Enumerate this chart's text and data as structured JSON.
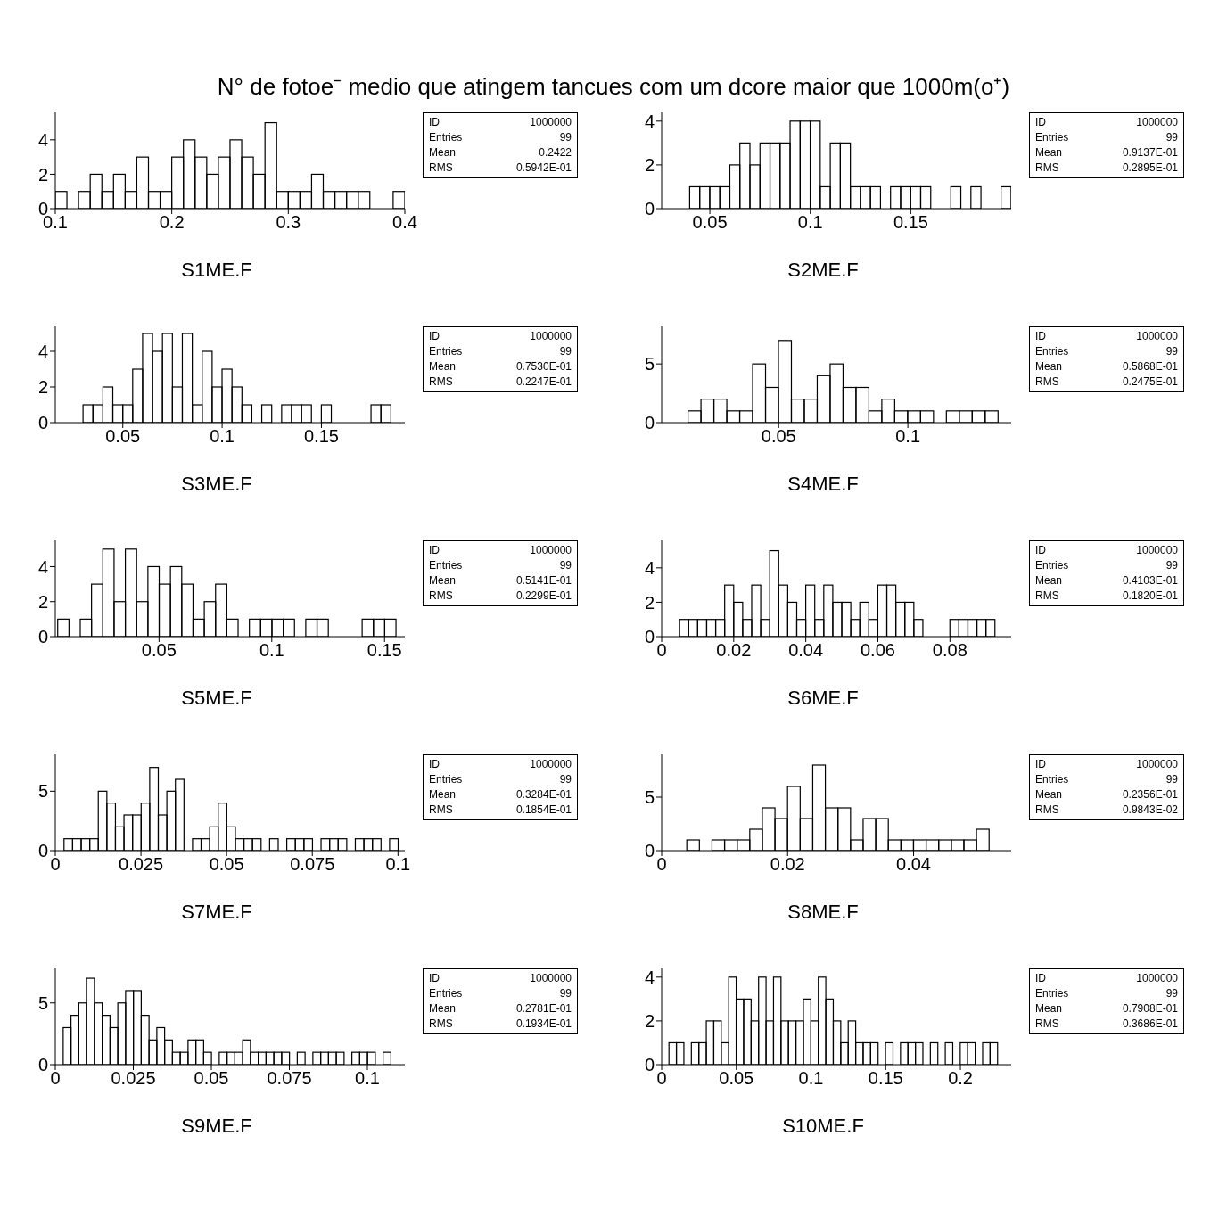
{
  "chart_data": [
    {
      "type": "histogram",
      "title": "N° de fotoe⁻ medio que atingem tancues com um dcore maior que 1000m(o⁺)",
      "xlabel": "S1ME.F",
      "color": "#000000",
      "xlim": [
        0.1,
        0.4
      ],
      "xticks": [
        0.1,
        0.2,
        0.3,
        0.4
      ],
      "ylim": [
        0,
        5.6
      ],
      "yticks": [
        0,
        2,
        4
      ],
      "bins": [
        0.1,
        0.11,
        0.12,
        0.13,
        0.14,
        0.15,
        0.16,
        0.17,
        0.18,
        0.19,
        0.2,
        0.21,
        0.22,
        0.23,
        0.24,
        0.25,
        0.26,
        0.27,
        0.28,
        0.29,
        0.3,
        0.31,
        0.32,
        0.33,
        0.34,
        0.35,
        0.36,
        0.37,
        0.38,
        0.39,
        0.4
      ],
      "values": [
        1,
        0,
        1,
        2,
        1,
        2,
        1,
        3,
        1,
        1,
        3,
        4,
        3,
        2,
        3,
        4,
        3,
        2,
        5,
        1,
        1,
        1,
        2,
        1,
        1,
        1,
        1,
        0,
        0,
        1
      ],
      "annotations": [
        "ID",
        "1000000",
        "Entries",
        "99",
        "Mean",
        "0.2422",
        "RMS",
        "0.5942E-01"
      ]
    },
    {
      "type": "histogram",
      "xlabel": "S2ME.F",
      "color": "#000000",
      "xlim": [
        0.026,
        0.2
      ],
      "xticks": [
        0.05,
        0.1,
        0.15
      ],
      "ylim": [
        0,
        4.4
      ],
      "yticks": [
        0,
        2,
        4
      ],
      "bins": [
        0.03,
        0.035,
        0.04,
        0.045,
        0.05,
        0.055,
        0.06,
        0.065,
        0.07,
        0.075,
        0.08,
        0.085,
        0.09,
        0.095,
        0.1,
        0.105,
        0.11,
        0.115,
        0.12,
        0.125,
        0.13,
        0.135,
        0.14,
        0.145,
        0.15,
        0.155,
        0.16,
        0.165,
        0.17,
        0.175,
        0.18,
        0.185,
        0.19,
        0.195,
        0.2
      ],
      "values": [
        0,
        0,
        1,
        1,
        1,
        1,
        2,
        3,
        2,
        3,
        3,
        3,
        4,
        4,
        4,
        1,
        3,
        3,
        1,
        1,
        1,
        0,
        1,
        1,
        1,
        1,
        0,
        0,
        1,
        0,
        1,
        0,
        0,
        1
      ],
      "annotations": [
        "ID",
        "1000000",
        "Entries",
        "99",
        "Mean",
        "0.9137E-01",
        "RMS",
        "0.2895E-01"
      ]
    },
    {
      "type": "histogram",
      "xlabel": "S3ME.F",
      "color": "#000000",
      "xlim": [
        0.016,
        0.192
      ],
      "xticks": [
        0.05,
        0.1,
        0.15
      ],
      "ylim": [
        0,
        5.4
      ],
      "yticks": [
        0,
        2,
        4
      ],
      "bins": [
        0.02,
        0.025,
        0.03,
        0.035,
        0.04,
        0.045,
        0.05,
        0.055,
        0.06,
        0.065,
        0.07,
        0.075,
        0.08,
        0.085,
        0.09,
        0.095,
        0.1,
        0.105,
        0.11,
        0.115,
        0.12,
        0.125,
        0.13,
        0.135,
        0.14,
        0.145,
        0.15,
        0.155,
        0.16,
        0.165,
        0.17,
        0.175,
        0.18,
        0.185,
        0.19
      ],
      "values": [
        0,
        0,
        1,
        1,
        2,
        1,
        1,
        3,
        5,
        4,
        5,
        2,
        5,
        1,
        4,
        2,
        3,
        2,
        1,
        0,
        1,
        0,
        1,
        1,
        1,
        0,
        1,
        0,
        0,
        0,
        0,
        1,
        1,
        0
      ],
      "annotations": [
        "ID",
        "1000000",
        "Entries",
        "99",
        "Mean",
        "0.7530E-01",
        "RMS",
        "0.2247E-01"
      ]
    },
    {
      "type": "histogram",
      "xlabel": "S4ME.F",
      "color": "#000000",
      "xlim": [
        0.0047,
        0.14
      ],
      "xticks": [
        0.05,
        0.1
      ],
      "ylim": [
        0,
        8.2
      ],
      "yticks": [
        0,
        5
      ],
      "bins": [
        0.005,
        0.01,
        0.015,
        0.02,
        0.025,
        0.03,
        0.035,
        0.04,
        0.045,
        0.05,
        0.055,
        0.06,
        0.065,
        0.07,
        0.075,
        0.08,
        0.085,
        0.09,
        0.095,
        0.1,
        0.105,
        0.11,
        0.115,
        0.12,
        0.125,
        0.13,
        0.135,
        0.14
      ],
      "values": [
        0,
        0,
        1,
        2,
        2,
        1,
        1,
        5,
        3,
        7,
        2,
        2,
        4,
        5,
        3,
        3,
        1,
        2,
        1,
        1,
        1,
        0,
        1,
        1,
        1,
        1,
        0
      ],
      "annotations": [
        "ID",
        "1000000",
        "Entries",
        "99",
        "Mean",
        "0.5868E-01",
        "RMS",
        "0.2475E-01"
      ]
    },
    {
      "type": "histogram",
      "xlabel": "S5ME.F",
      "color": "#000000",
      "xlim": [
        0.004,
        0.159
      ],
      "xticks": [
        0.05,
        0.1,
        0.15
      ],
      "ylim": [
        0,
        5.5
      ],
      "yticks": [
        0,
        2,
        4
      ],
      "bins": [
        0.005,
        0.01,
        0.015,
        0.02,
        0.025,
        0.03,
        0.035,
        0.04,
        0.045,
        0.05,
        0.055,
        0.06,
        0.065,
        0.07,
        0.075,
        0.08,
        0.085,
        0.09,
        0.095,
        0.1,
        0.105,
        0.11,
        0.115,
        0.12,
        0.125,
        0.13,
        0.135,
        0.14,
        0.145,
        0.15,
        0.155
      ],
      "values": [
        1,
        0,
        1,
        3,
        5,
        2,
        5,
        2,
        4,
        3,
        4,
        3,
        1,
        2,
        3,
        1,
        0,
        1,
        1,
        1,
        1,
        0,
        1,
        1,
        0,
        0,
        0,
        1,
        1,
        1
      ],
      "annotations": [
        "ID",
        "1000000",
        "Entries",
        "99",
        "Mean",
        "0.5141E-01",
        "RMS",
        "0.2299E-01"
      ]
    },
    {
      "type": "histogram",
      "xlabel": "S6ME.F",
      "color": "#000000",
      "xlim": [
        0,
        0.097
      ],
      "xticks": [
        0,
        0.02,
        0.04,
        0.06,
        0.08
      ],
      "ylim": [
        0,
        5.6
      ],
      "yticks": [
        0,
        2,
        4
      ],
      "bins": [
        0,
        0.0025,
        0.005,
        0.0075,
        0.01,
        0.0125,
        0.015,
        0.0175,
        0.02,
        0.0225,
        0.025,
        0.0275,
        0.03,
        0.0325,
        0.035,
        0.0375,
        0.04,
        0.0425,
        0.045,
        0.0475,
        0.05,
        0.0525,
        0.055,
        0.0575,
        0.06,
        0.0625,
        0.065,
        0.0675,
        0.07,
        0.0725,
        0.075,
        0.0775,
        0.08,
        0.0825,
        0.085,
        0.0875,
        0.09,
        0.0925,
        0.095
      ],
      "values": [
        0,
        0,
        1,
        1,
        1,
        1,
        1,
        3,
        2,
        1,
        3,
        1,
        5,
        3,
        2,
        1,
        3,
        1,
        3,
        2,
        2,
        1,
        2,
        1,
        3,
        3,
        2,
        2,
        1,
        0,
        0,
        0,
        1,
        1,
        1,
        1,
        1,
        0
      ],
      "annotations": [
        "ID",
        "1000000",
        "Entries",
        "99",
        "Mean",
        "0.4103E-01",
        "RMS",
        "0.1820E-01"
      ]
    },
    {
      "type": "histogram",
      "xlabel": "S7ME.F",
      "color": "#000000",
      "xlim": [
        0,
        0.102
      ],
      "xticks": [
        0,
        0.025,
        0.05,
        0.075,
        0.1
      ],
      "ylim": [
        0,
        8.1
      ],
      "yticks": [
        0,
        5
      ],
      "bins": [
        0,
        0.0025,
        0.005,
        0.0075,
        0.01,
        0.0125,
        0.015,
        0.0175,
        0.02,
        0.0225,
        0.025,
        0.0275,
        0.03,
        0.0325,
        0.035,
        0.0375,
        0.04,
        0.0425,
        0.045,
        0.0475,
        0.05,
        0.0525,
        0.055,
        0.0575,
        0.06,
        0.0625,
        0.065,
        0.0675,
        0.07,
        0.0725,
        0.075,
        0.0775,
        0.08,
        0.0825,
        0.085,
        0.0875,
        0.09,
        0.0925,
        0.095,
        0.0975,
        0.1
      ],
      "values": [
        0,
        1,
        1,
        1,
        1,
        5,
        4,
        2,
        3,
        3,
        4,
        7,
        3,
        5,
        6,
        0,
        1,
        1,
        2,
        4,
        2,
        1,
        1,
        1,
        0,
        1,
        0,
        1,
        1,
        1,
        0,
        1,
        1,
        1,
        0,
        1,
        1,
        1,
        0,
        1
      ],
      "annotations": [
        "ID",
        "1000000",
        "Entries",
        "99",
        "Mean",
        "0.3284E-01",
        "RMS",
        "0.1854E-01"
      ]
    },
    {
      "type": "histogram",
      "xlabel": "S8ME.F",
      "color": "#000000",
      "xlim": [
        0,
        0.0555
      ],
      "xticks": [
        0,
        0.02,
        0.04
      ],
      "ylim": [
        0,
        9
      ],
      "yticks": [
        0,
        5
      ],
      "bins": [
        0,
        0.002,
        0.004,
        0.006,
        0.008,
        0.01,
        0.012,
        0.014,
        0.016,
        0.018,
        0.02,
        0.022,
        0.024,
        0.026,
        0.028,
        0.03,
        0.032,
        0.034,
        0.036,
        0.038,
        0.04,
        0.042,
        0.044,
        0.046,
        0.048,
        0.05,
        0.052,
        0.054
      ],
      "values": [
        0,
        0,
        1,
        0,
        1,
        1,
        1,
        2,
        4,
        3,
        6,
        3,
        8,
        4,
        4,
        1,
        3,
        3,
        1,
        1,
        1,
        1,
        1,
        1,
        1,
        2,
        0
      ],
      "annotations": [
        "ID",
        "1000000",
        "Entries",
        "99",
        "Mean",
        "0.2356E-01",
        "RMS",
        "0.9843E-02"
      ]
    },
    {
      "type": "histogram",
      "xlabel": "S9ME.F",
      "color": "#000000",
      "xlim": [
        0,
        0.112
      ],
      "xticks": [
        0,
        0.025,
        0.05,
        0.075,
        0.1
      ],
      "ylim": [
        0,
        7.8
      ],
      "yticks": [
        0,
        5
      ],
      "bins": [
        0,
        0.0025,
        0.005,
        0.0075,
        0.01,
        0.0125,
        0.015,
        0.0175,
        0.02,
        0.0225,
        0.025,
        0.0275,
        0.03,
        0.0325,
        0.035,
        0.0375,
        0.04,
        0.0425,
        0.045,
        0.0475,
        0.05,
        0.0525,
        0.055,
        0.0575,
        0.06,
        0.0625,
        0.065,
        0.0675,
        0.07,
        0.0725,
        0.075,
        0.0775,
        0.08,
        0.0825,
        0.085,
        0.0875,
        0.09,
        0.0925,
        0.095,
        0.0975,
        0.1,
        0.1025,
        0.105,
        0.1075,
        0.11
      ],
      "values": [
        0,
        3,
        4,
        5,
        7,
        5,
        4,
        3,
        5,
        6,
        6,
        4,
        2,
        3,
        2,
        1,
        1,
        2,
        2,
        1,
        0,
        1,
        1,
        1,
        2,
        1,
        1,
        1,
        1,
        1,
        0,
        1,
        0,
        1,
        1,
        1,
        1,
        0,
        1,
        1,
        1,
        0,
        1,
        0
      ],
      "annotations": [
        "ID",
        "1000000",
        "Entries",
        "99",
        "Mean",
        "0.2781E-01",
        "RMS",
        "0.1934E-01"
      ]
    },
    {
      "type": "histogram",
      "xlabel": "S10ME.F",
      "color": "#000000",
      "xlim": [
        0,
        0.234
      ],
      "xticks": [
        0,
        0.05,
        0.1,
        0.15,
        0.2
      ],
      "ylim": [
        0,
        4.4
      ],
      "yticks": [
        0,
        2,
        4
      ],
      "bins": [
        0,
        0.005,
        0.01,
        0.015,
        0.02,
        0.025,
        0.03,
        0.035,
        0.04,
        0.045,
        0.05,
        0.055,
        0.06,
        0.065,
        0.07,
        0.075,
        0.08,
        0.085,
        0.09,
        0.095,
        0.1,
        0.105,
        0.11,
        0.115,
        0.12,
        0.125,
        0.13,
        0.135,
        0.14,
        0.145,
        0.15,
        0.155,
        0.16,
        0.165,
        0.17,
        0.175,
        0.18,
        0.185,
        0.19,
        0.195,
        0.2,
        0.205,
        0.21,
        0.215,
        0.22,
        0.225,
        0.23
      ],
      "values": [
        0,
        1,
        1,
        0,
        1,
        1,
        2,
        2,
        1,
        4,
        3,
        3,
        2,
        4,
        2,
        4,
        2,
        2,
        2,
        3,
        2,
        4,
        3,
        2,
        1,
        2,
        1,
        1,
        1,
        0,
        1,
        0,
        1,
        1,
        1,
        0,
        1,
        0,
        1,
        0,
        1,
        1,
        0,
        1,
        1,
        0
      ],
      "annotations": [
        "ID",
        "1000000",
        "Entries",
        "99",
        "Mean",
        "0.7908E-01",
        "RMS",
        "0.3686E-01"
      ]
    }
  ]
}
